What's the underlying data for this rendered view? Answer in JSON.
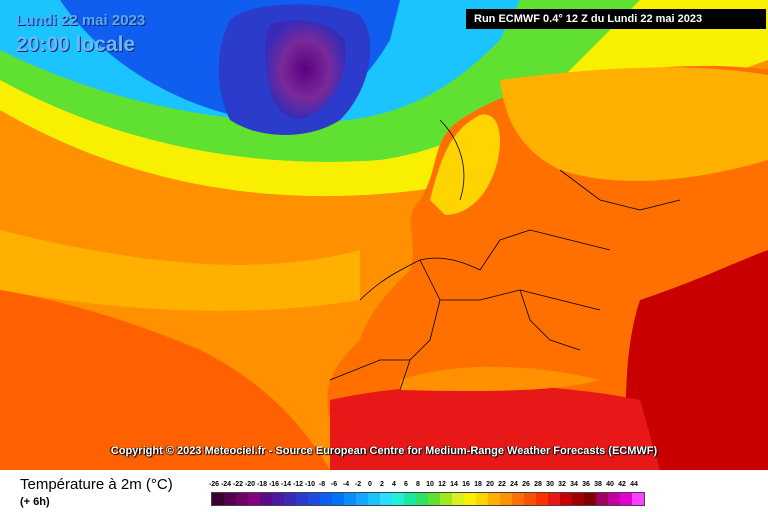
{
  "header": {
    "date": "Lundi 22 mai 2023",
    "time": "20:00 locale",
    "run": "Run ECMWF 0.4° 12 Z du Lundi 22 mai 2023"
  },
  "copyright": "Copyright © 2023 Meteociel.fr - Source European Centre for Medium-Range Weather Forecasts (ECMWF)",
  "legend": {
    "title": "Température à 2m (°C)",
    "subtitle": "(+ 6h)",
    "labels": [
      "-26",
      "-24",
      "-22",
      "-20",
      "-18",
      "-16",
      "-14",
      "-12",
      "-10",
      "-8",
      "-6",
      "-4",
      "-2",
      "0",
      "2",
      "4",
      "6",
      "8",
      "10",
      "12",
      "14",
      "16",
      "18",
      "20",
      "22",
      "24",
      "26",
      "28",
      "30",
      "32",
      "34",
      "36",
      "38",
      "40",
      "42",
      "44"
    ],
    "colors": [
      "#3d0035",
      "#55004d",
      "#6e0066",
      "#86007f",
      "#5a0b8a",
      "#4b1aa0",
      "#3a2bb6",
      "#2b3ccc",
      "#1c4de0",
      "#0f5ef0",
      "#0070ff",
      "#0a8cff",
      "#13a8ff",
      "#1cc4ff",
      "#25e0ff",
      "#20f0d8",
      "#1ae8a0",
      "#30e060",
      "#60e030",
      "#a0e820",
      "#d8f020",
      "#f8f000",
      "#ffd400",
      "#ffb000",
      "#ff9000",
      "#ff7000",
      "#ff5000",
      "#ff3000",
      "#e81818",
      "#c80000",
      "#a00000",
      "#800000",
      "#a00060",
      "#c000a0",
      "#e000d0",
      "#ff40ff"
    ]
  }
}
